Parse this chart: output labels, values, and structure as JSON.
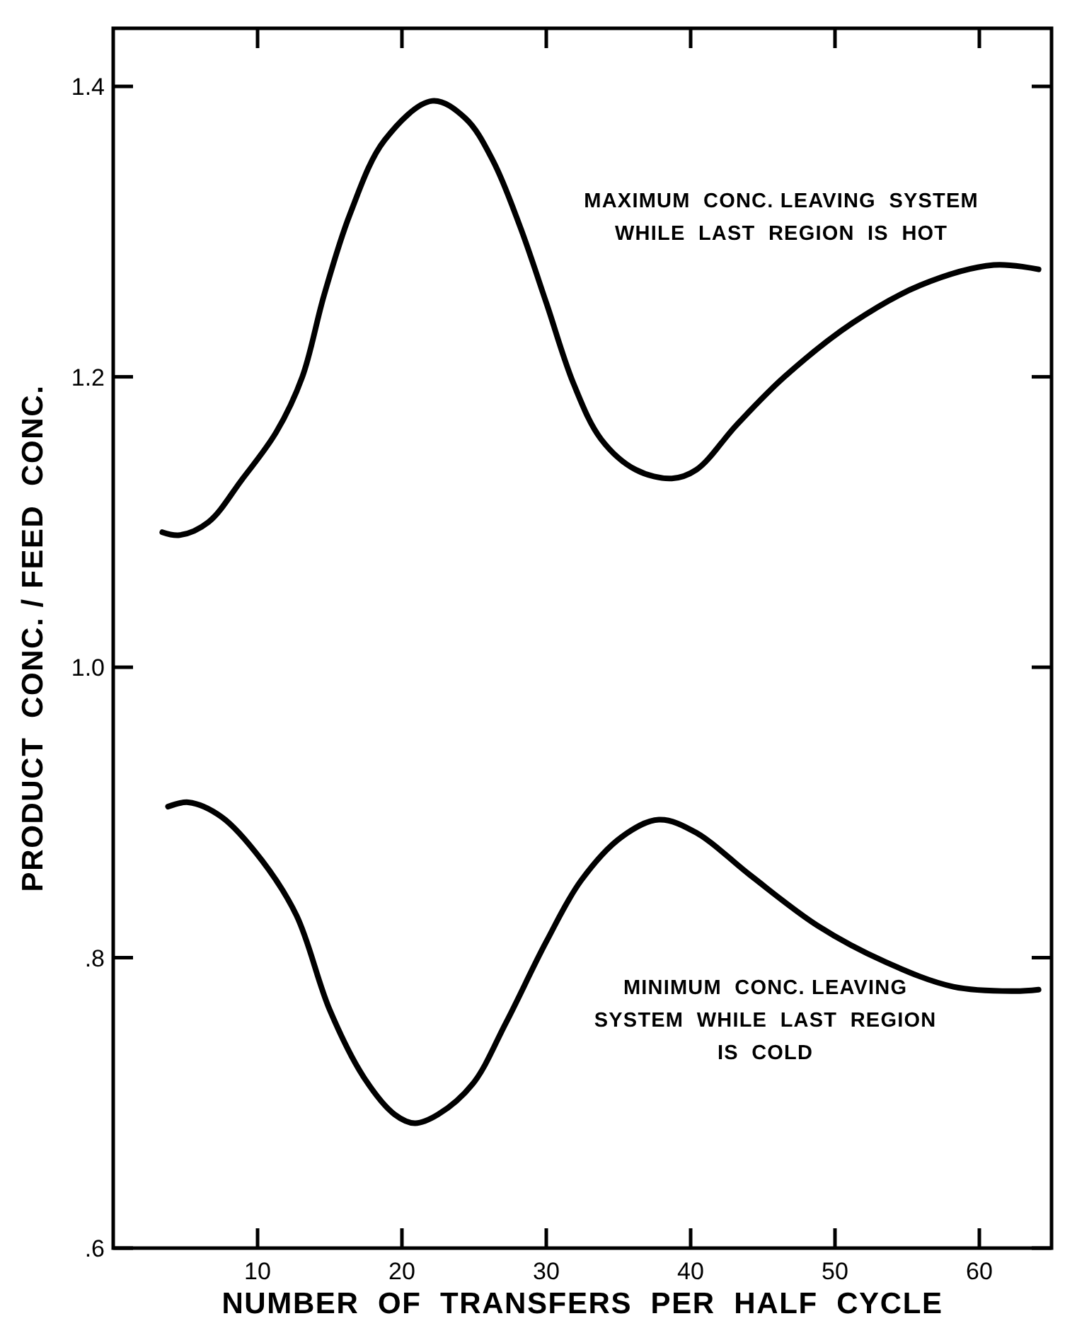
{
  "chart_data": {
    "type": "line",
    "xlabel": "NUMBER  OF  TRANSFERS  PER  HALF  CYCLE",
    "ylabel": "PRODUCT  CONC. / FEED  CONC.",
    "xlim": [
      0,
      65
    ],
    "ylim": [
      0.6,
      1.44
    ],
    "xticks": [
      10,
      20,
      30,
      40,
      50,
      60
    ],
    "yticks": [
      {
        "value": 0.6,
        "label": ".6"
      },
      {
        "value": 0.8,
        "label": ".8"
      },
      {
        "value": 1.0,
        "label": "1.0"
      },
      {
        "value": 1.2,
        "label": "1.2"
      },
      {
        "value": 1.4,
        "label": "1.4"
      }
    ],
    "grid": false,
    "marker": "none",
    "line_style": "solid",
    "series": [
      {
        "color": "#000000",
        "x": [
          3.4,
          4.6,
          6.6,
          8.9,
          11.3,
          13.1,
          14.6,
          16.4,
          18.8,
          22.1,
          24.4,
          26.3,
          28.2,
          30.0,
          31.9,
          33.8,
          36.2,
          38.7,
          40.4,
          43.2,
          46.5,
          51.2,
          55.9,
          61.0,
          64.1
        ],
        "values": [
          1.093,
          1.091,
          1.1,
          1.129,
          1.162,
          1.2,
          1.256,
          1.312,
          1.363,
          1.39,
          1.378,
          1.349,
          1.303,
          1.251,
          1.195,
          1.157,
          1.136,
          1.13,
          1.136,
          1.167,
          1.2,
          1.237,
          1.263,
          1.277,
          1.274
        ]
      },
      {
        "color": "#000000",
        "x": [
          3.8,
          5.2,
          7.5,
          10.3,
          12.7,
          15.0,
          17.4,
          19.5,
          20.9,
          22.5,
          24.9,
          27.2,
          30.0,
          32.4,
          35.2,
          37.8,
          40.4,
          44.1,
          48.8,
          53.5,
          58.2,
          62.4,
          64.1
        ],
        "values": [
          0.904,
          0.907,
          0.897,
          0.867,
          0.829,
          0.764,
          0.717,
          0.692,
          0.686,
          0.692,
          0.713,
          0.755,
          0.811,
          0.853,
          0.883,
          0.895,
          0.886,
          0.857,
          0.822,
          0.797,
          0.78,
          0.777,
          0.778
        ]
      }
    ],
    "annotations": [
      "MAXIMUM  CONC. LEAVING  SYSTEM\nWHILE  LAST  REGION  IS  HOT",
      "MINIMUM  CONC. LEAVING\nSYSTEM  WHILE  LAST  REGION\nIS  COLD"
    ]
  }
}
